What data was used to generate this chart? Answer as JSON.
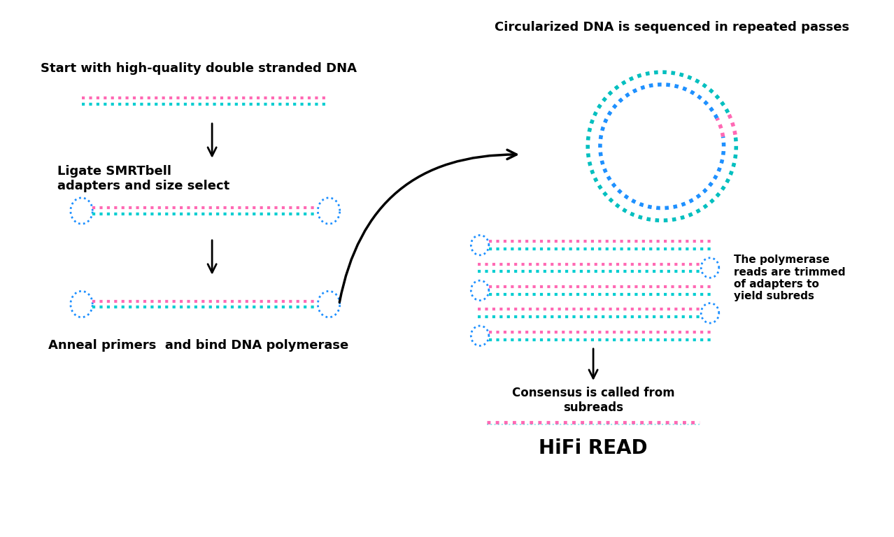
{
  "bg_color": "#ffffff",
  "cyan_color": "#00BFBF",
  "pink_color": "#FF69B4",
  "blue_color": "#1E90FF",
  "teal_color": "#00CED1",
  "text_color": "#000000",
  "label1": "Start with high-quality double stranded DNA",
  "label2": "Ligate SMRTbell\nadapters and size select",
  "label3": "Anneal primers  and bind DNA polymerase",
  "label4": "Circularized DNA is sequenced in repeated passes",
  "label5": "The polymerase\nreads are trimmed\nof adapters to\nyield subreds",
  "label6": "Consensus is called from\nsubreads",
  "label7": "HiFi READ"
}
